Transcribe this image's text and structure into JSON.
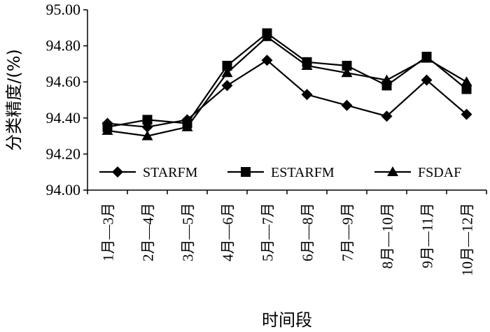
{
  "chart_data": {
    "type": "line",
    "xlabel": "时间段",
    "ylabel": "分类精度/(%)",
    "ylim": [
      94.0,
      95.0
    ],
    "yticks": [
      "94.00",
      "94.20",
      "94.40",
      "94.60",
      "94.80",
      "95.00"
    ],
    "categories": [
      "1月—3月",
      "2月—4月",
      "3月—5月",
      "4月—6月",
      "5月—7月",
      "6月—8月",
      "7月—9月",
      "8月—10月",
      "9月—11月",
      "10月—12月"
    ],
    "legend": "bottom-inside",
    "grid": false,
    "series": [
      {
        "name": "STARFM",
        "marker": "diamond",
        "values": [
          94.37,
          94.35,
          94.39,
          94.58,
          94.72,
          94.53,
          94.47,
          94.41,
          94.61,
          94.42
        ]
      },
      {
        "name": "ESTARFM",
        "marker": "square",
        "values": [
          94.35,
          94.39,
          94.37,
          94.69,
          94.87,
          94.71,
          94.69,
          94.58,
          94.74,
          94.56
        ]
      },
      {
        "name": "FSDAF",
        "marker": "triangle",
        "values": [
          94.33,
          94.3,
          94.35,
          94.65,
          94.85,
          94.69,
          94.65,
          94.61,
          94.73,
          94.6
        ]
      }
    ],
    "colors": {
      "line": "#000000"
    }
  }
}
